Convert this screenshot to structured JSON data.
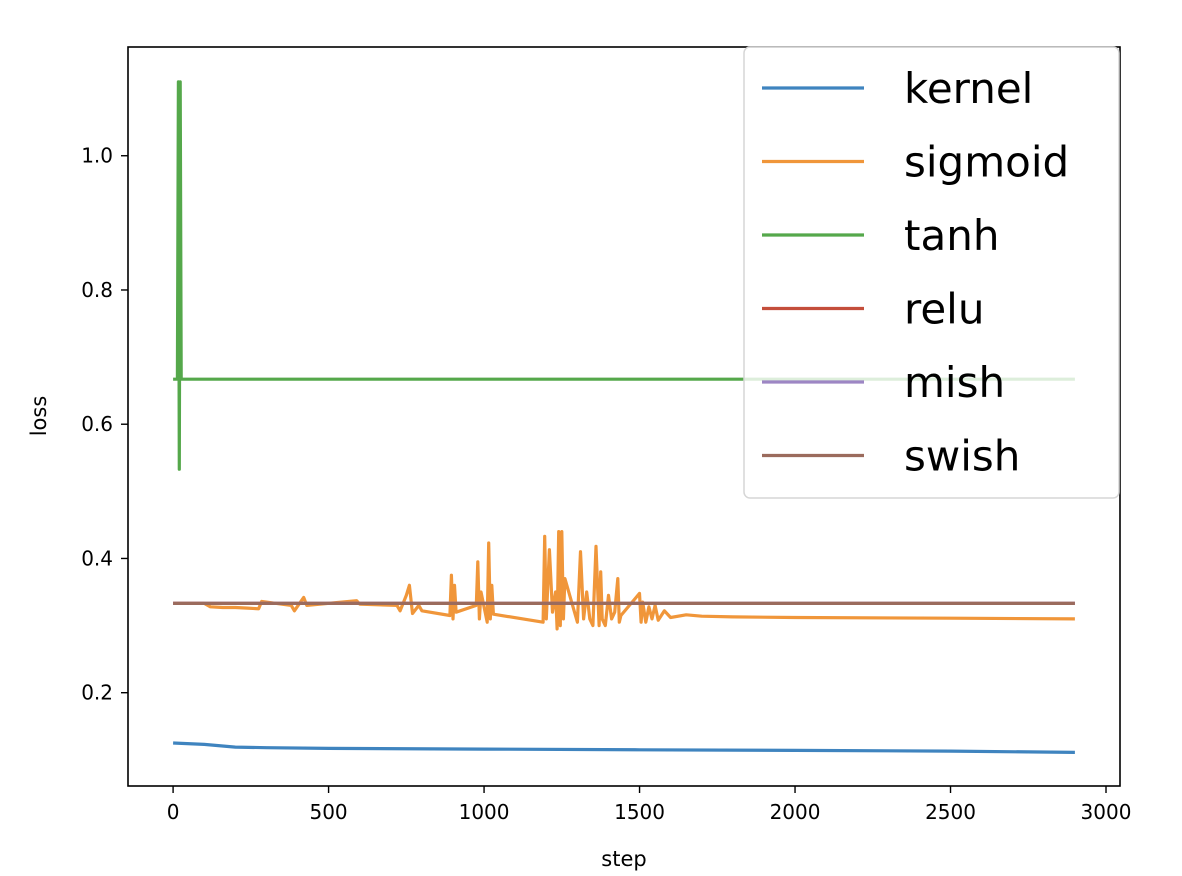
{
  "chart_data": {
    "type": "line",
    "title": "",
    "xlabel": "step",
    "ylabel": "loss",
    "xlim": [
      -145,
      3045
    ],
    "ylim": [
      0.061,
      1.162
    ],
    "xticks": [
      0,
      500,
      1000,
      1500,
      2000,
      2500,
      3000
    ],
    "yticks": [
      0.2,
      0.4,
      0.6,
      0.8,
      1.0
    ],
    "ytick_labels": [
      "0.2",
      "0.4",
      "0.6",
      "0.8",
      "1.0"
    ],
    "grid": false,
    "legend_position": "top-right",
    "series": [
      {
        "name": "kernel",
        "color": "#3f84bf",
        "x": [
          0,
          100,
          200,
          300,
          500,
          1000,
          1500,
          2000,
          2500,
          2900
        ],
        "y": [
          0.125,
          0.123,
          0.119,
          0.118,
          0.117,
          0.116,
          0.115,
          0.114,
          0.113,
          0.111
        ]
      },
      {
        "name": "sigmoid",
        "color": "#f0963a",
        "x": [
          0,
          100,
          120,
          160,
          200,
          240,
          275,
          285,
          380,
          390,
          420,
          430,
          590,
          600,
          720,
          730,
          750,
          760,
          770,
          790,
          800,
          890,
          895,
          900,
          905,
          910,
          975,
          980,
          985,
          990,
          1010,
          1015,
          1020,
          1025,
          1030,
          1190,
          1195,
          1200,
          1210,
          1220,
          1230,
          1235,
          1240,
          1245,
          1250,
          1255,
          1260,
          1300,
          1310,
          1320,
          1330,
          1340,
          1350,
          1360,
          1370,
          1375,
          1380,
          1390,
          1400,
          1410,
          1420,
          1430,
          1435,
          1440,
          1500,
          1505,
          1510,
          1520,
          1530,
          1540,
          1550,
          1560,
          1580,
          1600,
          1650,
          1700,
          1800,
          2000,
          2500,
          2900
        ],
        "y": [
          0.333,
          0.333,
          0.328,
          0.327,
          0.327,
          0.326,
          0.325,
          0.336,
          0.33,
          0.322,
          0.342,
          0.33,
          0.337,
          0.332,
          0.33,
          0.322,
          0.345,
          0.36,
          0.318,
          0.33,
          0.322,
          0.315,
          0.375,
          0.31,
          0.36,
          0.32,
          0.33,
          0.395,
          0.31,
          0.35,
          0.305,
          0.423,
          0.31,
          0.36,
          0.317,
          0.305,
          0.433,
          0.31,
          0.413,
          0.32,
          0.35,
          0.295,
          0.44,
          0.3,
          0.44,
          0.31,
          0.37,
          0.305,
          0.41,
          0.31,
          0.35,
          0.31,
          0.3,
          0.418,
          0.3,
          0.38,
          0.31,
          0.3,
          0.345,
          0.31,
          0.32,
          0.37,
          0.305,
          0.315,
          0.348,
          0.305,
          0.335,
          0.305,
          0.328,
          0.31,
          0.33,
          0.308,
          0.322,
          0.312,
          0.316,
          0.314,
          0.313,
          0.312,
          0.311,
          0.31
        ]
      },
      {
        "name": "tanh",
        "color": "#55a84b",
        "x": [
          0,
          14,
          17,
          20,
          23,
          26,
          2900
        ],
        "y": [
          0.667,
          0.667,
          1.11,
          0.533,
          1.11,
          0.667,
          0.667
        ]
      },
      {
        "name": "relu",
        "color": "#c44e3b",
        "x": [
          0,
          2900
        ],
        "y": [
          0.333,
          0.333
        ]
      },
      {
        "name": "mish",
        "color": "#9d86c4",
        "x": [
          0,
          2900
        ],
        "y": [
          0.333,
          0.333
        ]
      },
      {
        "name": "swish",
        "color": "#9b6b5d",
        "x": [
          0,
          2900
        ],
        "y": [
          0.333,
          0.333
        ]
      }
    ]
  }
}
